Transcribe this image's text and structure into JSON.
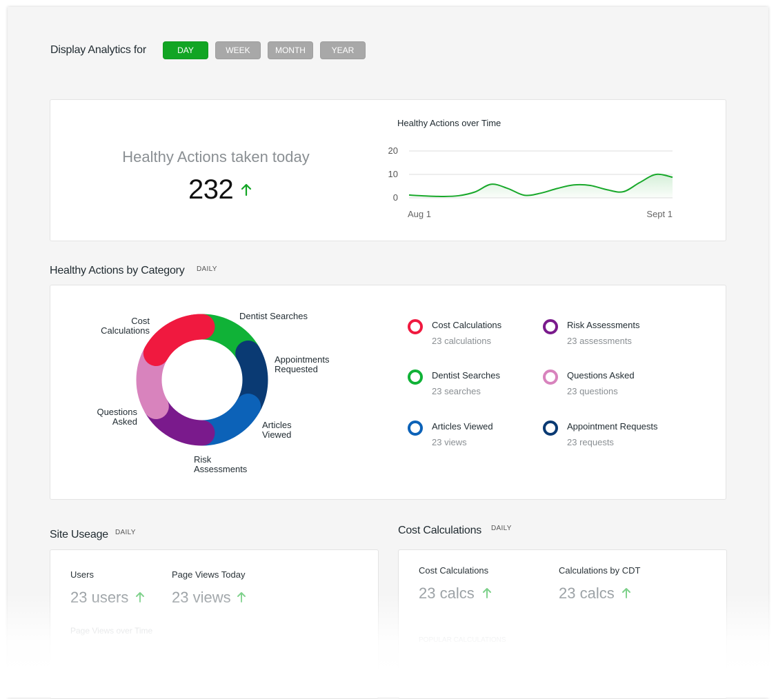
{
  "toolbar": {
    "label": "Display Analytics for",
    "ranges": [
      {
        "label": "DAY",
        "active": true
      },
      {
        "label": "WEEK",
        "active": false
      },
      {
        "label": "MONTH",
        "active": false
      },
      {
        "label": "YEAR",
        "active": false
      }
    ]
  },
  "summary": {
    "title": "Healthy Actions taken today",
    "value": "232",
    "trend_icon": "arrow-up-icon",
    "trend_color": "#12a524"
  },
  "chart_data": {
    "type": "area",
    "title": "Healthy Actions  over Time",
    "xlabel": "",
    "ylabel": "",
    "x_tick_labels": [
      "Aug 1",
      "Sept 1"
    ],
    "y_ticks": [
      0,
      10,
      20
    ],
    "ylim": [
      0,
      20
    ],
    "grid": true,
    "series": [
      {
        "color": "#18a82a",
        "values": [
          1.2,
          0.8,
          0.6,
          0.9,
          2.5,
          5.8,
          4.0,
          1.1,
          2.0,
          4.0,
          5.5,
          5.3,
          3.5,
          2.6,
          6.5,
          10.0,
          8.8
        ]
      }
    ]
  },
  "category_section": {
    "title": "Healthy Actions by Category",
    "tag": "DAILY",
    "segments": [
      {
        "label": "Cost\nCalculations",
        "color": "#f0193f",
        "value": 23
      },
      {
        "label": "Dentist Searches",
        "color": "#10b237",
        "value": 23
      },
      {
        "label": "Appointments\nRequested",
        "color": "#0a3a73",
        "value": 23
      },
      {
        "label": "Articles\nViewed",
        "color": "#0c62b8",
        "value": 23
      },
      {
        "label": "Risk\nAssessments",
        "color": "#7a1a8c",
        "value": 23
      },
      {
        "label": "Questions\nAsked",
        "color": "#d883bd",
        "value": 23
      }
    ],
    "legend": [
      {
        "name": "Cost Calculations",
        "sub": "23 calculations",
        "color": "#f0193f"
      },
      {
        "name": "Risk Assessments",
        "sub": "23 assessments",
        "color": "#7a1a8c"
      },
      {
        "name": "Dentist Searches",
        "sub": "23 searches",
        "color": "#10b237"
      },
      {
        "name": "Questions Asked",
        "sub": "23 questions",
        "color": "#d883bd"
      },
      {
        "name": "Articles Viewed",
        "sub": "23 views",
        "color": "#0c62b8"
      },
      {
        "name": "Appointment Requests",
        "sub": "23 requests",
        "color": "#0a3a73"
      }
    ]
  },
  "site_usage": {
    "title": "Site Useage",
    "tag": "DAILY",
    "users_label": "Users",
    "users_value": "23 users",
    "views_label": "Page Views Today",
    "views_value": "23 views",
    "over_time_label": "Page Views over Time"
  },
  "cost_calcs": {
    "title": "Cost Calculations",
    "tag": "DAILY",
    "calc_label": "Cost Calculations",
    "calc_value": "23 calcs",
    "cdt_label": "Calculations by CDT",
    "cdt_value": "23 calcs",
    "popular_label": "POPULAR CALCULATIONS"
  },
  "colors": {
    "accent_green": "#12a524",
    "inactive_button": "#a8a8a8"
  }
}
